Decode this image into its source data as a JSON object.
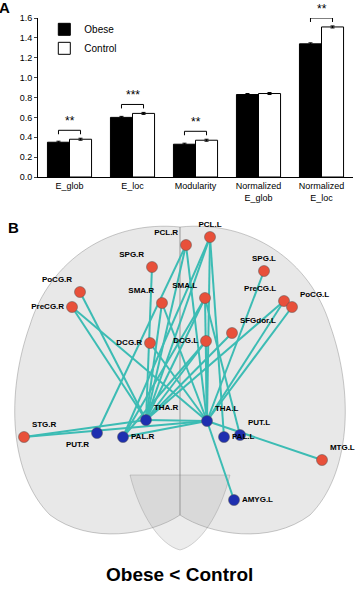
{
  "chart_data": {
    "type": "bar",
    "annotations": [
      "A"
    ],
    "categories": [
      "E_glob",
      "E_loc",
      "Modularity",
      "Normalized E_glob",
      "Normalized E_loc"
    ],
    "series": [
      {
        "name": "Obese",
        "color": "#000000",
        "values": [
          0.35,
          0.6,
          0.33,
          0.83,
          1.34
        ],
        "error": [
          0.01,
          0.01,
          0.01,
          0.01,
          0.01
        ]
      },
      {
        "name": "Control",
        "color": "#ffffff",
        "values": [
          0.38,
          0.64,
          0.37,
          0.84,
          1.51
        ],
        "error": [
          0.01,
          0.01,
          0.01,
          0.01,
          0.01
        ]
      }
    ],
    "significance": [
      "**",
      "***",
      "**",
      null,
      "**"
    ],
    "ylim": [
      0,
      1.6
    ],
    "yticks": [
      {
        "value": 0,
        "label": "0.0"
      },
      0.2,
      0.4,
      0.6,
      0.8,
      {
        "value": 1,
        "label": "1.0"
      },
      1.2,
      1.4,
      1.6
    ],
    "legend": "top left",
    "grid": false
  },
  "network": {
    "panel_label": "B",
    "title": "Obese < Control",
    "nodes": [
      {
        "label": "PCL.R",
        "color": "#e8503a"
      },
      {
        "label": "PCL.L",
        "color": "#e8503a"
      },
      {
        "label": "SPG.R",
        "color": "#e8503a"
      },
      {
        "label": "SPG.L",
        "color": "#e8503a"
      },
      {
        "label": "PoCG.R",
        "color": "#e8503a"
      },
      {
        "label": "PreCG.R",
        "color": "#e8503a"
      },
      {
        "label": "PreCG.L",
        "color": "#e8503a"
      },
      {
        "label": "PoCG.L",
        "color": "#e8503a"
      },
      {
        "label": "SMA.R",
        "color": "#e8503a"
      },
      {
        "label": "SMA.L",
        "color": "#e8503a"
      },
      {
        "label": "SFGdor.L",
        "color": "#e8503a"
      },
      {
        "label": "DCG.R",
        "color": "#e8503a"
      },
      {
        "label": "DCG.L",
        "color": "#e8503a"
      },
      {
        "label": "STG.R",
        "color": "#e8503a"
      },
      {
        "label": "THA.R",
        "color": "#1e2fb0"
      },
      {
        "label": "THA.L",
        "color": "#1e2fb0"
      },
      {
        "label": "PUT.R",
        "color": "#1e2fb0"
      },
      {
        "label": "PAL.R",
        "color": "#1e2fb0"
      },
      {
        "label": "PAL.L",
        "color": "#1e2fb0"
      },
      {
        "label": "PUT.L",
        "color": "#1e2fb0"
      },
      {
        "label": "MTG.L",
        "color": "#e8503a"
      },
      {
        "label": "AMYG.L",
        "color": "#1e2fb0"
      }
    ],
    "edges": [
      [
        14,
        0
      ],
      [
        14,
        1
      ],
      [
        14,
        8
      ],
      [
        14,
        9
      ],
      [
        14,
        12
      ],
      [
        14,
        10
      ],
      [
        14,
        6
      ],
      [
        14,
        4
      ],
      [
        14,
        5
      ],
      [
        14,
        2
      ],
      [
        14,
        13
      ],
      [
        14,
        15
      ],
      [
        15,
        0
      ],
      [
        15,
        1
      ],
      [
        15,
        8
      ],
      [
        15,
        9
      ],
      [
        15,
        3
      ],
      [
        15,
        6
      ],
      [
        15,
        7
      ],
      [
        15,
        11
      ],
      [
        15,
        12
      ],
      [
        15,
        5
      ],
      [
        15,
        13
      ],
      [
        15,
        20
      ],
      [
        15,
        17
      ],
      [
        15,
        21
      ],
      [
        17,
        9
      ],
      [
        17,
        1
      ],
      [
        17,
        12
      ],
      [
        16,
        0
      ],
      [
        18,
        1
      ],
      [
        19,
        9
      ]
    ],
    "edge_color": "#3cbcb4"
  }
}
